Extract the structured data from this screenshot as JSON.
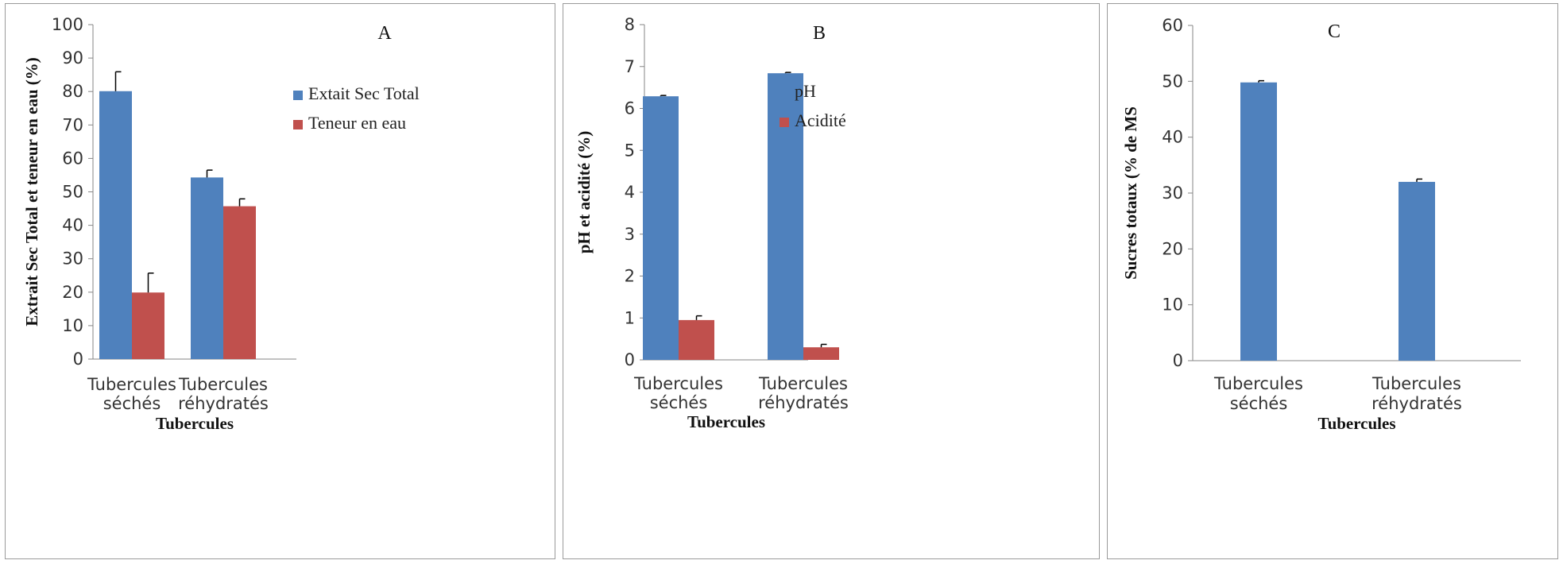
{
  "chart_data": [
    {
      "type": "bar",
      "panel_label": "A",
      "categories": [
        [
          "Tubercules",
          "séchés"
        ],
        [
          "Tubercules",
          "réhydratés"
        ]
      ],
      "xlabel": "Tubercules",
      "ylabel": "Extrait Sec Total et teneur en eau (%)",
      "ylim": [
        0,
        100
      ],
      "yticks": [
        0,
        10,
        20,
        30,
        40,
        50,
        60,
        70,
        80,
        90,
        100
      ],
      "legend_position": "right",
      "series": [
        {
          "name": "Extait Sec Total",
          "color": "#4f81bd",
          "values": [
            80.1,
            54.3
          ],
          "errors": [
            5.8,
            2.2
          ]
        },
        {
          "name": "Teneur en eau",
          "color": "#c0504d",
          "values": [
            19.9,
            45.7
          ],
          "errors": [
            5.8,
            2.2
          ]
        }
      ]
    },
    {
      "type": "bar",
      "panel_label": "B",
      "categories": [
        [
          "Tubercules",
          "séchés"
        ],
        [
          "Tubercules",
          "réhydratés"
        ]
      ],
      "xlabel": "Tubercules",
      "ylabel": "pH et acidité (%)",
      "ylim": [
        0,
        8
      ],
      "yticks": [
        0,
        1,
        2,
        3,
        4,
        5,
        6,
        7,
        8
      ],
      "legend_position": "right",
      "series": [
        {
          "name": "pH",
          "color": "#4f81bd",
          "values": [
            6.29,
            6.84
          ],
          "errors": [
            0.02,
            0.02
          ]
        },
        {
          "name": "Acidité",
          "color": "#c0504d",
          "values": [
            0.95,
            0.3
          ],
          "errors": [
            0.1,
            0.07
          ]
        }
      ]
    },
    {
      "type": "bar",
      "panel_label": "C",
      "categories": [
        [
          "Tubercules",
          "séchés"
        ],
        [
          "Tubercules",
          "réhydratés"
        ]
      ],
      "xlabel": "Tubercules",
      "ylabel": "Sucres totaux (% de MS",
      "ylim": [
        0,
        60
      ],
      "yticks": [
        0,
        10,
        20,
        30,
        40,
        50,
        60
      ],
      "legend_position": "none",
      "series": [
        {
          "color": "#4f81bd",
          "values": [
            49.8,
            32.0
          ],
          "errors": [
            0.3,
            0.5
          ]
        }
      ]
    }
  ]
}
